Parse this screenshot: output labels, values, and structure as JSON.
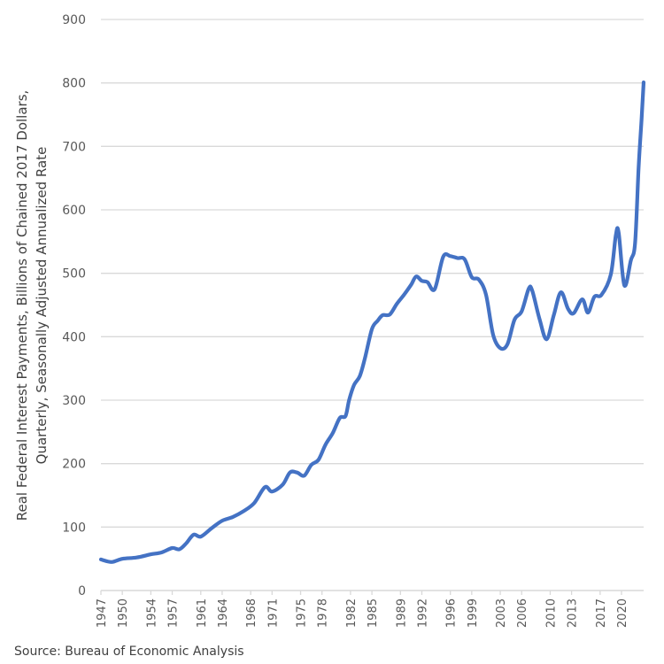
{
  "chart_data": {
    "type": "line",
    "title": "",
    "xlabel": "",
    "ylabel_lines": [
      "Real Federal Interest Payments, Billions of Chained 2017 Dollars,",
      "Quarterly, Seasonally Adjusted Annualized Rate"
    ],
    "ylim": [
      0,
      900
    ],
    "yticks": [
      0,
      100,
      200,
      300,
      400,
      500,
      600,
      700,
      800,
      900
    ],
    "xlim": [
      1947,
      2023.2
    ],
    "xticks": [
      "1947",
      "1950",
      "1954",
      "1957",
      "1961",
      "1964",
      "1968",
      "1971",
      "1975",
      "1978",
      "1982",
      "1985",
      "1989",
      "1992",
      "1996",
      "1999",
      "2003",
      "2006",
      "2010",
      "2013",
      "2017",
      "2020"
    ],
    "grid": true,
    "legend": "none",
    "line_color": "#4472c4",
    "series": [
      {
        "name": "Real Federal Interest Payments",
        "x": [
          1947,
          1948.5,
          1950,
          1952,
          1954,
          1955.5,
          1957,
          1958,
          1959,
          1960,
          1961,
          1962.5,
          1964,
          1965.5,
          1967,
          1968.5,
          1970,
          1971,
          1972.5,
          1973.5,
          1974.5,
          1975.5,
          1976.5,
          1977.5,
          1978.5,
          1979.5,
          1980.5,
          1981.3,
          1981.8,
          1982.5,
          1983.3,
          1984,
          1985,
          1985.8,
          1986.5,
          1987.5,
          1988.5,
          1989.5,
          1990.5,
          1991.2,
          1992,
          1992.8,
          1993.8,
          1995,
          1996,
          1997,
          1998,
          1999,
          2000,
          2001,
          2002,
          2003,
          2004,
          2005,
          2006,
          2007,
          2007.5,
          2008.5,
          2009.5,
          2010.5,
          2011.5,
          2012.5,
          2013.3,
          2014.5,
          2015.3,
          2016.2,
          2017.2,
          2018.5,
          2019.2,
          2019.6,
          2020.4,
          2021.3,
          2021.9,
          2022.4,
          2022.8,
          2023.1
        ],
        "values": [
          49,
          45,
          50,
          52,
          57,
          60,
          67,
          65,
          75,
          88,
          85,
          98,
          110,
          116,
          125,
          138,
          163,
          156,
          167,
          186,
          186,
          181,
          198,
          206,
          230,
          248,
          272,
          275,
          300,
          324,
          338,
          365,
          412,
          425,
          434,
          435,
          452,
          466,
          482,
          495,
          488,
          486,
          475,
          526,
          527,
          524,
          522,
          494,
          490,
          466,
          403,
          382,
          388,
          427,
          440,
          476,
          472,
          428,
          396,
          434,
          470,
          444,
          437,
          459,
          438,
          463,
          466,
          498,
          560,
          564,
          481,
          520,
          547,
          666,
          741,
          801
        ]
      }
    ],
    "source": "Source: Bureau of Economic Analysis"
  }
}
